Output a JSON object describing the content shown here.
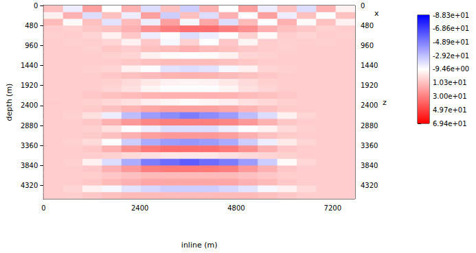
{
  "chart_data": {
    "type": "heatmap",
    "x_label": "inline (m)",
    "y_label": "depth (m)",
    "x_axis_name": "x",
    "y_axis_name": "z",
    "xlim": [
      0,
      7760
    ],
    "xticks": [
      0,
      2400,
      4800,
      7200
    ],
    "ylim": [
      4640,
      0
    ],
    "yticks": [
      0,
      480,
      960,
      1440,
      1920,
      2400,
      2880,
      3360,
      3840,
      4320
    ],
    "x_bins": [
      0,
      485,
      970,
      1455,
      1940,
      2425,
      2910,
      3395,
      3880,
      4365,
      4850,
      5335,
      5820,
      6305,
      6790,
      7275,
      7760
    ],
    "y_bins": [
      0,
      160,
      320,
      480,
      640,
      800,
      960,
      1120,
      1280,
      1440,
      1600,
      1760,
      1920,
      2080,
      2240,
      2400,
      2560,
      2720,
      2880,
      3040,
      3200,
      3360,
      3520,
      3680,
      3840,
      4000,
      4160,
      4320,
      4480,
      4640
    ],
    "values": [
      [
        10,
        -15,
        20,
        -10,
        15,
        -20,
        10,
        -25,
        15,
        -10,
        20,
        -15,
        10,
        -20,
        15,
        -5
      ],
      [
        -5,
        15,
        -20,
        10,
        -15,
        20,
        -25,
        10,
        -20,
        15,
        -10,
        20,
        -15,
        10,
        -10,
        10
      ],
      [
        12,
        -8,
        10,
        -18,
        12,
        -15,
        20,
        -12,
        18,
        -20,
        12,
        -10,
        15,
        -8,
        10,
        -5
      ],
      [
        6,
        5,
        8,
        10,
        15,
        25,
        30,
        35,
        35,
        30,
        25,
        15,
        10,
        8,
        5,
        6
      ],
      [
        5,
        6,
        4,
        -5,
        8,
        -15,
        -10,
        -20,
        -15,
        -10,
        5,
        -8,
        6,
        4,
        6,
        5
      ],
      [
        6,
        5,
        6,
        4,
        -5,
        8,
        -12,
        5,
        -10,
        8,
        -6,
        6,
        5,
        6,
        5,
        6
      ],
      [
        6,
        6,
        5,
        8,
        6,
        10,
        12,
        15,
        12,
        10,
        8,
        6,
        5,
        6,
        6,
        6
      ],
      [
        6,
        6,
        6,
        5,
        4,
        -5,
        -8,
        -10,
        -8,
        -5,
        4,
        5,
        6,
        6,
        6,
        6
      ],
      [
        6,
        6,
        6,
        6,
        8,
        10,
        12,
        12,
        12,
        10,
        8,
        6,
        6,
        6,
        6,
        6
      ],
      [
        6,
        6,
        5,
        4,
        -5,
        -10,
        -18,
        -20,
        -18,
        -12,
        -5,
        4,
        5,
        6,
        6,
        6
      ],
      [
        6,
        6,
        6,
        8,
        10,
        12,
        14,
        15,
        14,
        12,
        10,
        8,
        6,
        6,
        6,
        6
      ],
      [
        6,
        6,
        6,
        5,
        2,
        -2,
        -5,
        -6,
        -5,
        -2,
        2,
        5,
        6,
        6,
        6,
        6
      ],
      [
        6,
        6,
        6,
        4,
        0,
        -6,
        -10,
        -10,
        -10,
        -6,
        0,
        4,
        6,
        6,
        6,
        6
      ],
      [
        6,
        6,
        8,
        10,
        12,
        14,
        15,
        15,
        15,
        14,
        12,
        10,
        8,
        6,
        6,
        6
      ],
      [
        6,
        6,
        5,
        3,
        0,
        -4,
        -6,
        -8,
        -6,
        -4,
        0,
        3,
        5,
        6,
        6,
        6
      ],
      [
        6,
        6,
        7,
        10,
        14,
        18,
        20,
        20,
        20,
        18,
        14,
        10,
        7,
        6,
        6,
        6
      ],
      [
        6,
        5,
        0,
        -15,
        -30,
        -40,
        -45,
        -50,
        -45,
        -40,
        -30,
        -20,
        -5,
        4,
        6,
        6
      ],
      [
        6,
        6,
        8,
        15,
        22,
        28,
        30,
        30,
        30,
        28,
        22,
        15,
        8,
        6,
        6,
        6
      ],
      [
        6,
        6,
        5,
        0,
        -10,
        -15,
        -20,
        -20,
        -20,
        -15,
        -10,
        -5,
        2,
        5,
        6,
        6
      ],
      [
        6,
        6,
        7,
        10,
        15,
        20,
        22,
        22,
        22,
        20,
        15,
        10,
        7,
        6,
        6,
        6
      ],
      [
        6,
        5,
        2,
        -10,
        -25,
        -35,
        -40,
        -42,
        -40,
        -35,
        -25,
        -15,
        -3,
        4,
        6,
        6
      ],
      [
        6,
        6,
        8,
        15,
        25,
        32,
        35,
        35,
        35,
        32,
        25,
        15,
        8,
        6,
        6,
        6
      ],
      [
        6,
        6,
        6,
        5,
        2,
        0,
        -2,
        -2,
        -2,
        0,
        2,
        4,
        5,
        6,
        6,
        6
      ],
      [
        6,
        5,
        -5,
        -20,
        -35,
        -50,
        -55,
        -60,
        -55,
        -50,
        -40,
        -25,
        -8,
        3,
        6,
        6
      ],
      [
        6,
        6,
        8,
        15,
        22,
        30,
        32,
        32,
        32,
        30,
        22,
        15,
        8,
        6,
        6,
        6
      ],
      [
        6,
        6,
        6,
        8,
        10,
        12,
        12,
        12,
        12,
        12,
        10,
        8,
        6,
        6,
        6,
        6
      ],
      [
        6,
        6,
        8,
        12,
        15,
        18,
        18,
        18,
        18,
        18,
        15,
        12,
        8,
        6,
        6,
        6
      ],
      [
        6,
        4,
        -5,
        -12,
        -18,
        -22,
        -25,
        -25,
        -25,
        -22,
        -18,
        -12,
        -5,
        2,
        6,
        6
      ],
      [
        6,
        6,
        8,
        10,
        12,
        12,
        12,
        12,
        12,
        12,
        12,
        10,
        8,
        6,
        6,
        6
      ]
    ],
    "color_bar": {
      "range": [
        -88.3,
        69.4
      ],
      "ticks": [
        {
          "value": -88.3,
          "label": "-8.83e+01"
        },
        {
          "value": -68.6,
          "label": "-6.86e+01"
        },
        {
          "value": -48.9,
          "label": "-4.89e+01"
        },
        {
          "value": -29.2,
          "label": "-2.92e+01"
        },
        {
          "value": -9.46,
          "label": "-9.46e+00"
        },
        {
          "value": 10.3,
          "label": "1.03e+01"
        },
        {
          "value": 30.0,
          "label": "3.00e+01"
        },
        {
          "value": 49.7,
          "label": "4.97e+01"
        },
        {
          "value": 69.4,
          "label": "6.94e+01"
        }
      ],
      "colors": [
        "#0000ff",
        "#ffffff",
        "#ff0000"
      ]
    }
  }
}
